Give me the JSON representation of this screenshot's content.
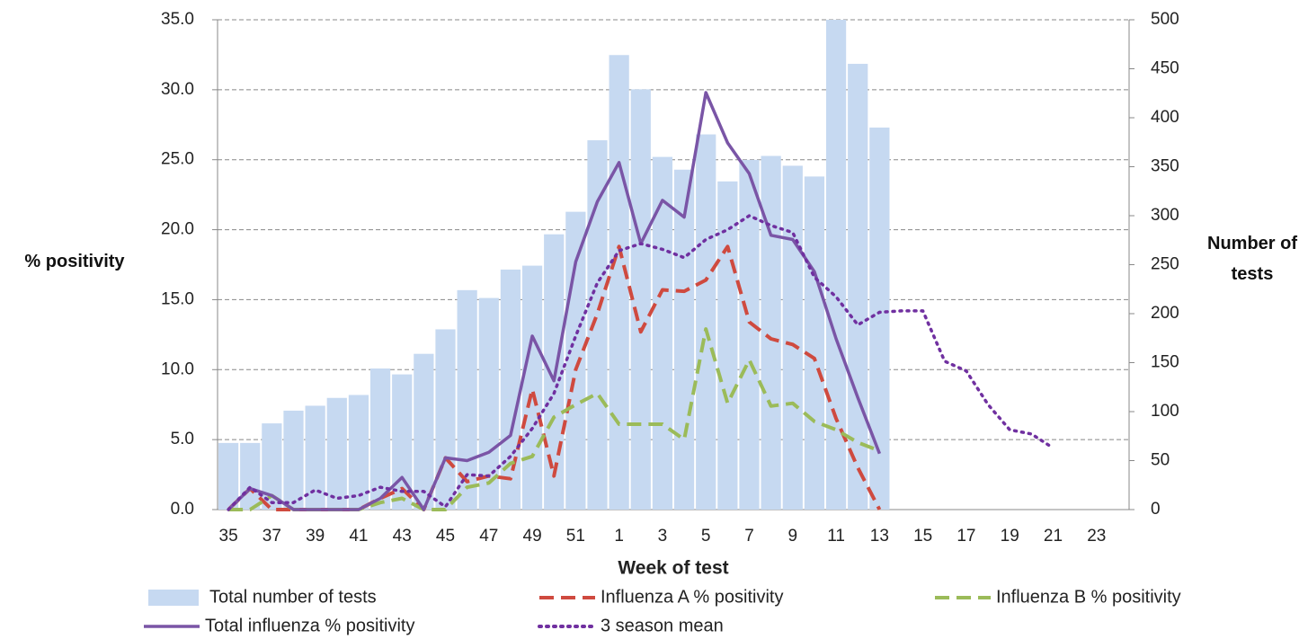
{
  "chart_data": {
    "type": "combo",
    "x_label": "Week of test",
    "y_label": "% positivity",
    "y2_label": "Number of tests",
    "categories": [
      "35",
      null,
      "37",
      null,
      "39",
      null,
      "41",
      null,
      "43",
      null,
      "45",
      null,
      "47",
      null,
      "49",
      null,
      "51",
      null,
      "1",
      null,
      "3",
      null,
      "5",
      null,
      "7",
      null,
      "9",
      null,
      "11",
      null,
      "13",
      null,
      "15",
      null,
      "17",
      null,
      "19",
      null,
      "21",
      null,
      "23",
      null
    ],
    "ylim": [
      0,
      35
    ],
    "yticks": [
      {
        "value": 0,
        "label": "0.0"
      },
      {
        "value": 5,
        "label": "5.0"
      },
      {
        "value": 10,
        "label": "10.0"
      },
      {
        "value": 15,
        "label": "15.0"
      },
      {
        "value": 20,
        "label": "20.0"
      },
      {
        "value": 25,
        "label": "25.0"
      },
      {
        "value": 30,
        "label": "30.0"
      },
      {
        "value": 35,
        "label": "35.0"
      }
    ],
    "y2lim": [
      0,
      500
    ],
    "y2ticks": [
      0,
      50,
      100,
      150,
      200,
      250,
      300,
      350,
      400,
      450,
      500
    ],
    "grid": true,
    "series": [
      {
        "name": "Total number of tests",
        "type": "bar",
        "axis": "y2",
        "color": "#c6d9f1",
        "values": [
          68,
          68,
          88,
          101,
          106,
          114,
          117,
          144,
          138,
          159,
          184,
          224,
          216,
          245,
          249,
          281,
          304,
          377,
          464,
          429,
          360,
          347,
          383,
          335,
          357,
          361,
          351,
          340,
          500,
          455,
          390,
          null,
          null,
          null,
          null,
          null,
          null,
          null,
          null,
          null,
          null,
          null
        ]
      },
      {
        "name": "Influenza A % positivity",
        "type": "line",
        "style": "dashed",
        "color": "#cf4a3f",
        "values": [
          0,
          1.5,
          0,
          0,
          0,
          0,
          0,
          0.8,
          1.5,
          0,
          3.7,
          2.0,
          2.4,
          2.2,
          8.6,
          2.4,
          10.0,
          14.0,
          18.8,
          12.7,
          15.7,
          15.6,
          16.4,
          18.8,
          13.4,
          12.2,
          11.8,
          10.8,
          6.5,
          3.0,
          0,
          null,
          null,
          null,
          null,
          null,
          null,
          null,
          null,
          null,
          null,
          null
        ]
      },
      {
        "name": "Influenza B % positivity",
        "type": "line",
        "style": "dashed",
        "color": "#9bbb59",
        "values": [
          0,
          0,
          1.0,
          0,
          0,
          0,
          0,
          0.5,
          0.8,
          0,
          0,
          1.6,
          1.9,
          3.3,
          3.8,
          6.6,
          7.5,
          8.3,
          6.1,
          6.1,
          6.1,
          5.0,
          12.9,
          7.6,
          10.7,
          7.4,
          7.6,
          6.3,
          5.7,
          4.8,
          4.2,
          null,
          null,
          null,
          null,
          null,
          null,
          null,
          null,
          null,
          null,
          null
        ]
      },
      {
        "name": "Total influenza % positivity",
        "type": "line",
        "style": "solid",
        "color": "#7a55a6",
        "values": [
          0,
          1.5,
          1.0,
          0,
          0,
          0,
          0,
          0.8,
          2.3,
          0,
          3.7,
          3.5,
          4.1,
          5.3,
          12.4,
          9.2,
          17.7,
          22.0,
          24.8,
          19.0,
          22.1,
          20.9,
          29.8,
          26.2,
          24.0,
          19.6,
          19.3,
          17.0,
          12.2,
          8.0,
          4.0,
          null,
          null,
          null,
          null,
          null,
          null,
          null,
          null,
          null,
          null,
          null
        ]
      },
      {
        "name": "3 season mean",
        "type": "line",
        "style": "dotted",
        "color": "#7030a0",
        "values": [
          0,
          1.6,
          0.5,
          0.5,
          1.4,
          0.8,
          1.0,
          1.6,
          1.3,
          1.3,
          0.2,
          2.5,
          2.4,
          3.8,
          5.8,
          8.3,
          12.4,
          16.2,
          18.5,
          19.0,
          18.6,
          18.0,
          19.3,
          20.0,
          21.0,
          20.3,
          19.8,
          16.6,
          15.2,
          13.2,
          14.1,
          14.2,
          14.2,
          10.6,
          9.9,
          7.5,
          5.7,
          5.4,
          4.4,
          null,
          null,
          null
        ]
      }
    ]
  }
}
